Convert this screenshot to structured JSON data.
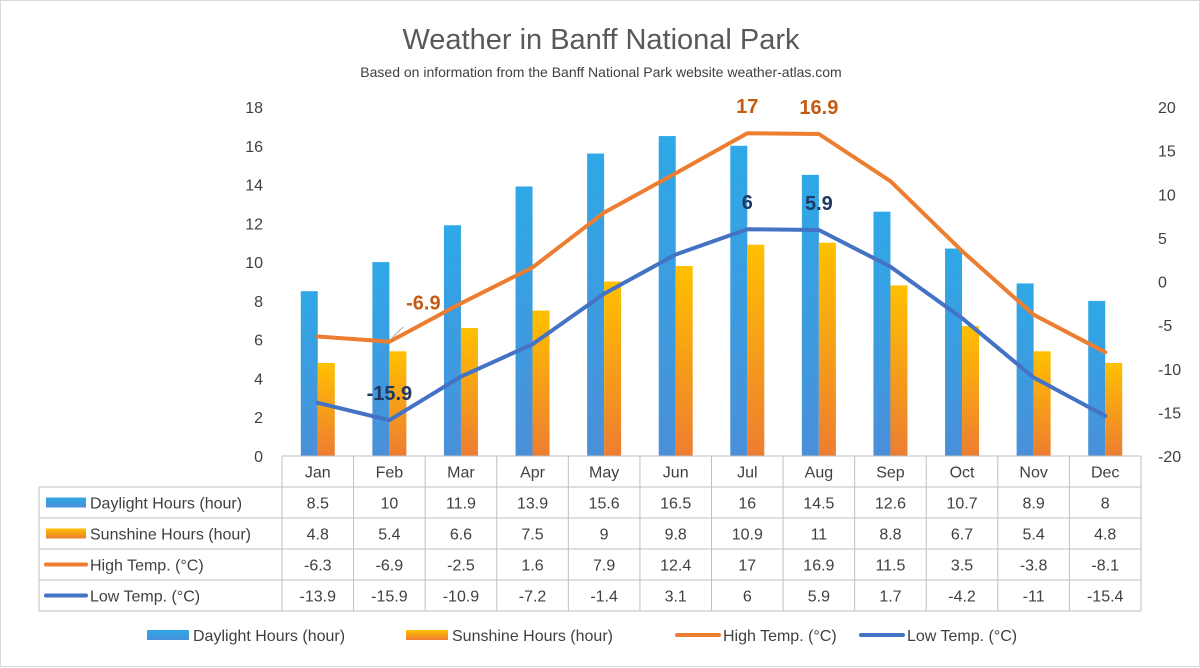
{
  "chart_data": {
    "type": "bar",
    "title": "Weather in Banff National Park",
    "subtitle": "Based on information from the Banff National Park website weather-atlas.com",
    "categories": [
      "Jan",
      "Feb",
      "Mar",
      "Apr",
      "May",
      "Jun",
      "Jul",
      "Aug",
      "Sep",
      "Oct",
      "Nov",
      "Dec"
    ],
    "y_left": {
      "min": 0,
      "max": 18,
      "step": 2,
      "ticks": [
        "0",
        "2",
        "4",
        "6",
        "8",
        "10",
        "12",
        "14",
        "16",
        "18"
      ]
    },
    "y_right": {
      "min": -20,
      "max": 20,
      "step": 5,
      "ticks": [
        "-20",
        "-15",
        "-10",
        "-5",
        "0",
        "5",
        "10",
        "15",
        "20"
      ]
    },
    "series": [
      {
        "name": "Daylight Hours (hour)",
        "type": "bar",
        "axis": "left",
        "color": "#2ea8e6",
        "color2": "#4a90d9",
        "values": [
          8.5,
          10,
          11.9,
          13.9,
          15.6,
          16.5,
          16,
          14.5,
          12.6,
          10.7,
          8.9,
          8
        ],
        "labels": [
          "8.5",
          "10",
          "11.9",
          "13.9",
          "15.6",
          "16.5",
          "16",
          "14.5",
          "12.6",
          "10.7",
          "8.9",
          "8"
        ]
      },
      {
        "name": "Sunshine Hours (hour)",
        "type": "bar",
        "axis": "left",
        "color": "#ffc000",
        "color2": "#ed7d31",
        "values": [
          4.8,
          5.4,
          6.6,
          7.5,
          9,
          9.8,
          10.9,
          11,
          8.8,
          6.7,
          5.4,
          4.8
        ],
        "labels": [
          "4.8",
          "5.4",
          "6.6",
          "7.5",
          "9",
          "9.8",
          "10.9",
          "11",
          "8.8",
          "6.7",
          "5.4",
          "4.8"
        ]
      },
      {
        "name": "High Temp. (°C)",
        "type": "line",
        "axis": "right",
        "color": "#ed7d31",
        "values": [
          -6.3,
          -6.9,
          -2.5,
          1.6,
          7.9,
          12.4,
          17,
          16.9,
          11.5,
          3.5,
          -3.8,
          -8.1
        ],
        "labels": [
          "-6.3",
          "-6.9",
          "-2.5",
          "1.6",
          "7.9",
          "12.4",
          "17",
          "16.9",
          "11.5",
          "3.5",
          "-3.8",
          "-8.1"
        ]
      },
      {
        "name": "Low Temp. (°C)",
        "type": "line",
        "axis": "right",
        "color": "#4472c4",
        "values": [
          -13.9,
          -15.9,
          -10.9,
          -7.2,
          -1.4,
          3.1,
          6,
          5.9,
          1.7,
          -4.2,
          -11,
          -15.4
        ],
        "labels": [
          "-13.9",
          "-15.9",
          "-10.9",
          "-7.2",
          "-1.4",
          "3.1",
          "6",
          "5.9",
          "1.7",
          "-4.2",
          "-11",
          "-15.4"
        ]
      }
    ],
    "annotations": [
      {
        "series": 2,
        "index": 1,
        "text": "-6.9",
        "color": "#c55a11"
      },
      {
        "series": 2,
        "index": 6,
        "text": "17",
        "color": "#c55a11"
      },
      {
        "series": 2,
        "index": 7,
        "text": "16.9",
        "color": "#c55a11"
      },
      {
        "series": 3,
        "index": 1,
        "text": "-15.9",
        "color": "#1f3864"
      },
      {
        "series": 3,
        "index": 6,
        "text": "6",
        "color": "#1f3864"
      },
      {
        "series": 3,
        "index": 7,
        "text": "5.9",
        "color": "#1f3864"
      }
    ],
    "grid": false,
    "data_table": true,
    "legend": "bottom"
  }
}
